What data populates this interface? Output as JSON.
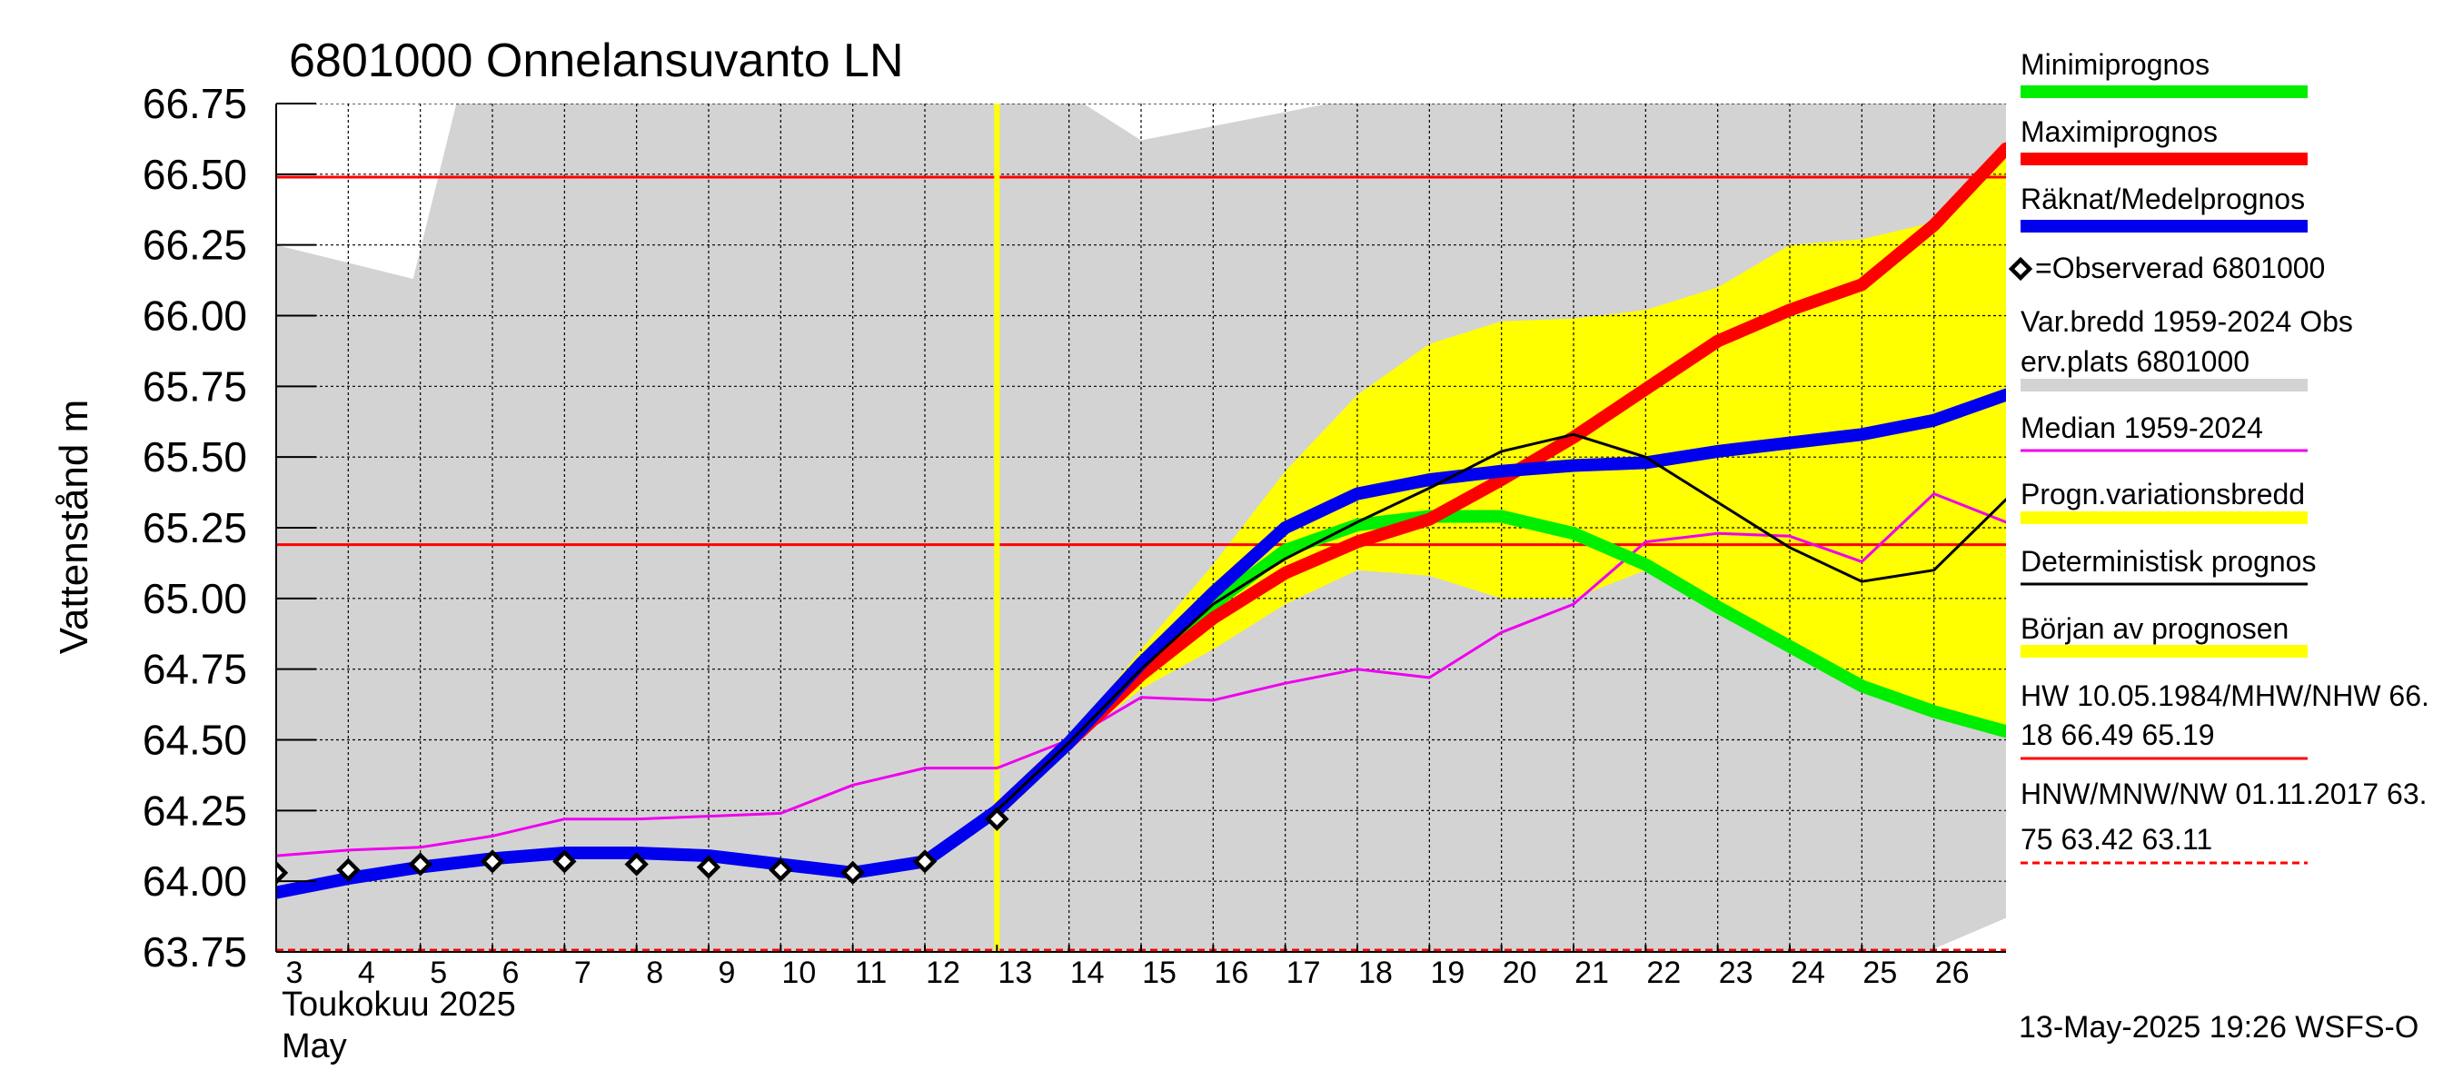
{
  "chart_data": {
    "type": "line",
    "title": "6801000 Onnelansuvanto LN",
    "ylabel": "Vattenstånd m",
    "xlabel_month": "Toukokuu  2025",
    "xlabel_month2": "May",
    "footer": "13-May-2025 19:26 WSFS-O",
    "ylim": [
      63.75,
      66.75
    ],
    "xlim": [
      3,
      27
    ],
    "yticks": [
      "63.75",
      "64.00",
      "64.25",
      "64.50",
      "64.75",
      "65.00",
      "65.25",
      "65.50",
      "65.75",
      "66.00",
      "66.25",
      "66.50",
      "66.75"
    ],
    "xticks": [
      "3",
      "4",
      "5",
      "6",
      "7",
      "8",
      "9",
      "10",
      "11",
      "12",
      "13",
      "14",
      "15",
      "16",
      "17",
      "18",
      "19",
      "20",
      "21",
      "22",
      "23",
      "24",
      "25",
      "26"
    ],
    "reference_lines": {
      "hw": 66.49,
      "mhw": 65.19,
      "nw": 63.75
    },
    "forecast_start": 13,
    "hist_range_upper": [
      [
        3,
        66.25
      ],
      [
        4.9,
        66.13
      ],
      [
        5.5,
        66.75
      ],
      [
        27,
        66.75
      ]
    ],
    "hist_range_lower": [
      [
        3,
        63.75
      ],
      [
        27,
        63.75
      ]
    ],
    "hist_range_gaps": [
      [
        [
          3,
          66.75
        ],
        [
          5.5,
          66.75
        ],
        [
          4.9,
          66.13
        ],
        [
          3,
          66.25
        ]
      ],
      [
        [
          14.2,
          66.75
        ],
        [
          15,
          66.62
        ],
        [
          17.6,
          66.75
        ]
      ]
    ],
    "hist_range_max_right": [
      [
        25.9,
        63.75
      ],
      [
        27,
        63.87
      ]
    ],
    "forecast_band_upper": [
      [
        13,
        64.25
      ],
      [
        14,
        64.5
      ],
      [
        15,
        64.82
      ],
      [
        16,
        65.12
      ],
      [
        17,
        65.45
      ],
      [
        18,
        65.72
      ],
      [
        19,
        65.9
      ],
      [
        20,
        65.98
      ],
      [
        21,
        65.99
      ],
      [
        22,
        66.02
      ],
      [
        23,
        66.1
      ],
      [
        24,
        66.25
      ],
      [
        25,
        66.27
      ],
      [
        26,
        66.33
      ],
      [
        27,
        66.58
      ]
    ],
    "forecast_band_lower": [
      [
        27,
        64.53
      ],
      [
        26,
        64.6
      ],
      [
        25,
        64.7
      ],
      [
        24,
        64.82
      ],
      [
        23,
        64.96
      ],
      [
        22,
        65.1
      ],
      [
        21,
        65.0
      ],
      [
        20,
        65.0
      ],
      [
        19,
        65.08
      ],
      [
        18,
        65.1
      ],
      [
        17,
        64.98
      ],
      [
        16,
        64.82
      ],
      [
        15,
        64.68
      ],
      [
        14,
        64.48
      ],
      [
        13,
        64.25
      ]
    ],
    "series": [
      {
        "name": "Minimiprognos",
        "color": "#00ee00",
        "width": 14,
        "points": [
          [
            13,
            64.25
          ],
          [
            14,
            64.49
          ],
          [
            15,
            64.77
          ],
          [
            16,
            64.98
          ],
          [
            17,
            65.17
          ],
          [
            18,
            65.26
          ],
          [
            19,
            65.29
          ],
          [
            20,
            65.29
          ],
          [
            21,
            65.23
          ],
          [
            22,
            65.12
          ],
          [
            23,
            64.97
          ],
          [
            24,
            64.83
          ],
          [
            25,
            64.69
          ],
          [
            26,
            64.6
          ],
          [
            27,
            64.53
          ]
        ]
      },
      {
        "name": "Maximiprognos",
        "color": "#ff0000",
        "width": 14,
        "points": [
          [
            13,
            64.25
          ],
          [
            14,
            64.49
          ],
          [
            15,
            64.73
          ],
          [
            16,
            64.93
          ],
          [
            17,
            65.09
          ],
          [
            18,
            65.2
          ],
          [
            19,
            65.28
          ],
          [
            20,
            65.42
          ],
          [
            21,
            65.57
          ],
          [
            22,
            65.74
          ],
          [
            23,
            65.91
          ],
          [
            24,
            66.02
          ],
          [
            25,
            66.11
          ],
          [
            26,
            66.32
          ],
          [
            27,
            66.59
          ]
        ]
      },
      {
        "name": "Räknat/Medelprognos",
        "color": "#0000ee",
        "width": 14,
        "points": [
          [
            3,
            63.96
          ],
          [
            4,
            64.01
          ],
          [
            5,
            64.05
          ],
          [
            6,
            64.08
          ],
          [
            7,
            64.1
          ],
          [
            8,
            64.1
          ],
          [
            9,
            64.09
          ],
          [
            10,
            64.06
          ],
          [
            11,
            64.03
          ],
          [
            12,
            64.07
          ],
          [
            13,
            64.25
          ],
          [
            14,
            64.49
          ],
          [
            15,
            64.77
          ],
          [
            16,
            65.02
          ],
          [
            17,
            65.25
          ],
          [
            18,
            65.37
          ],
          [
            19,
            65.42
          ],
          [
            20,
            65.45
          ],
          [
            21,
            65.47
          ],
          [
            22,
            65.48
          ],
          [
            23,
            65.52
          ],
          [
            24,
            65.55
          ],
          [
            25,
            65.58
          ],
          [
            26,
            65.63
          ],
          [
            27,
            65.72
          ]
        ]
      },
      {
        "name": "Median 1959-2024",
        "color": "#ee00ee",
        "width": 3,
        "points": [
          [
            3,
            64.09
          ],
          [
            4,
            64.11
          ],
          [
            5,
            64.12
          ],
          [
            6,
            64.16
          ],
          [
            7,
            64.22
          ],
          [
            8,
            64.22
          ],
          [
            9,
            64.23
          ],
          [
            10,
            64.24
          ],
          [
            11,
            64.34
          ],
          [
            12,
            64.4
          ],
          [
            13,
            64.4
          ],
          [
            14,
            64.5
          ],
          [
            15,
            64.65
          ],
          [
            16,
            64.64
          ],
          [
            17,
            64.7
          ],
          [
            18,
            64.75
          ],
          [
            19,
            64.72
          ],
          [
            20,
            64.88
          ],
          [
            21,
            64.98
          ],
          [
            22,
            65.2
          ],
          [
            23,
            65.23
          ],
          [
            24,
            65.22
          ],
          [
            25,
            65.13
          ],
          [
            26,
            65.37
          ],
          [
            27,
            65.27
          ]
        ]
      },
      {
        "name": "Deterministisk prognos",
        "color": "#000000",
        "width": 3,
        "points": [
          [
            13,
            64.25
          ],
          [
            14,
            64.49
          ],
          [
            15,
            64.75
          ],
          [
            16,
            64.98
          ],
          [
            17,
            65.14
          ],
          [
            18,
            65.27
          ],
          [
            19,
            65.39
          ],
          [
            20,
            65.52
          ],
          [
            21,
            65.58
          ],
          [
            22,
            65.5
          ],
          [
            23,
            65.34
          ],
          [
            24,
            65.18
          ],
          [
            25,
            65.06
          ],
          [
            26,
            65.1
          ],
          [
            27,
            65.35
          ]
        ]
      }
    ],
    "observed": {
      "name": "=Observerad 6801000",
      "points": [
        [
          3,
          64.03
        ],
        [
          4,
          64.04
        ],
        [
          5,
          64.06
        ],
        [
          6,
          64.07
        ],
        [
          7,
          64.07
        ],
        [
          8,
          64.06
        ],
        [
          9,
          64.05
        ],
        [
          10,
          64.04
        ],
        [
          11,
          64.03
        ],
        [
          12,
          64.07
        ],
        [
          13,
          64.22
        ]
      ]
    },
    "legend": [
      {
        "label": "Minimiprognos",
        "color": "#00ee00",
        "kind": "thick"
      },
      {
        "label": "Maximiprognos",
        "color": "#ff0000",
        "kind": "thick"
      },
      {
        "label": "Räknat/Medelprognos",
        "color": "#0000ee",
        "kind": "thick"
      },
      {
        "label": "=Observerad 6801000",
        "color": "#000000",
        "kind": "marker"
      },
      {
        "label": "Var.bredd 1959-2024   Obs",
        "label2": "erv.plats 6801000",
        "color": "#d3d3d3",
        "kind": "thick"
      },
      {
        "label": "Median 1959-2024",
        "color": "#ee00ee",
        "kind": "thin"
      },
      {
        "label": "Progn.variationsbredd",
        "color": "#ffff00",
        "kind": "thick"
      },
      {
        "label": "Deterministisk prognos",
        "color": "#000000",
        "kind": "thin"
      },
      {
        "label": "Början av prognosen",
        "color": "#ffff00",
        "kind": "thick"
      },
      {
        "label": "HW 10.05.1984/MHW/NHW 66.",
        "label2": "18 66.49 65.19",
        "color": "#ff0000",
        "kind": "thin"
      },
      {
        "label": "HNW/MNW/NW 01.11.2017 63.",
        "label2": "75 63.42 63.11",
        "color": "#ff0000",
        "kind": "dashed"
      }
    ]
  }
}
